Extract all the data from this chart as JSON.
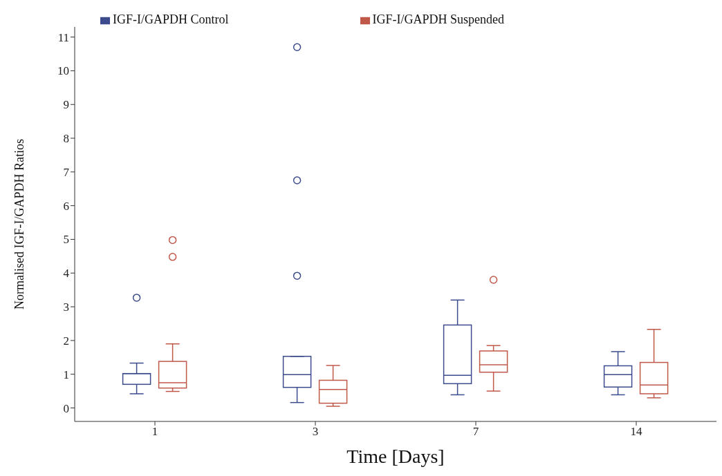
{
  "chart_data": {
    "type": "box",
    "xlabel": "Time [Days]",
    "ylabel": "Normalised IGF-I/GAPDH Ratios",
    "categories": [
      "1",
      "3",
      "7",
      "14"
    ],
    "ylim": [
      -0.4,
      11.3
    ],
    "yticks": [
      0,
      1,
      2,
      3,
      4,
      5,
      6,
      7,
      8,
      9,
      10,
      11
    ],
    "grid": false,
    "legend": "top",
    "series": [
      {
        "name": "IGF-I/GAPDH Control",
        "color": "#3b4b8c",
        "boxes": [
          {
            "low": 0.42,
            "q1": 0.7,
            "median": 1.02,
            "q3": 1.02,
            "high": 1.33,
            "outliers": [
              3.27
            ]
          },
          {
            "low": 0.16,
            "q1": 0.61,
            "median": 0.99,
            "q3": 1.53,
            "high": 1.53,
            "outliers": [
              3.92,
              6.75,
              10.7
            ]
          },
          {
            "low": 0.39,
            "q1": 0.72,
            "median": 0.97,
            "q3": 2.46,
            "high": 3.2
          },
          {
            "low": 0.39,
            "q1": 0.62,
            "median": 0.99,
            "q3": 1.25,
            "high": 1.67
          }
        ]
      },
      {
        "name": "IGF-I/GAPDH Suspended",
        "color": "#c0584a",
        "boxes": [
          {
            "low": 0.49,
            "q1": 0.59,
            "median": 0.75,
            "q3": 1.38,
            "high": 1.9,
            "outliers": [
              4.48,
              4.98
            ]
          },
          {
            "low": 0.05,
            "q1": 0.14,
            "median": 0.55,
            "q3": 0.82,
            "high": 1.26
          },
          {
            "low": 0.5,
            "q1": 1.06,
            "median": 1.28,
            "q3": 1.69,
            "high": 1.85,
            "outliers": [
              3.8
            ]
          },
          {
            "low": 0.3,
            "q1": 0.42,
            "median": 0.68,
            "q3": 1.35,
            "high": 2.33
          }
        ]
      }
    ]
  }
}
